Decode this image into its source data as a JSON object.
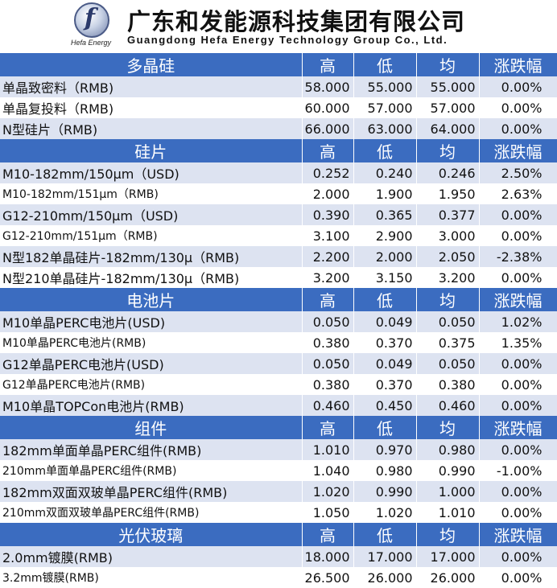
{
  "header": {
    "logo_text": "Hefa Energy",
    "company_cn": "广东和发能源科技集团有限公司",
    "company_en": "Guangdong Hefa Energy Technology Group Co., Ltd."
  },
  "columns": {
    "high": "高",
    "low": "低",
    "avg": "均",
    "change": "涨跌幅"
  },
  "sections": [
    {
      "name": "多晶硅",
      "rows": [
        {
          "name": "单晶致密料（RMB)",
          "high": "58.000",
          "low": "55.000",
          "avg": "55.000",
          "change": "0.00%"
        },
        {
          "name": "单晶复投料（RMB)",
          "high": "60.000",
          "low": "57.000",
          "avg": "57.000",
          "change": "0.00%"
        },
        {
          "name": "N型硅片（RMB)",
          "high": "66.000",
          "low": "63.000",
          "avg": "64.000",
          "change": "0.00%"
        }
      ]
    },
    {
      "name": "硅片",
      "rows": [
        {
          "name": "M10-182mm/150μm（USD)",
          "high": "0.252",
          "low": "0.240",
          "avg": "0.246",
          "change": "2.50%"
        },
        {
          "name": "M10-182mm/151μm（RMB)",
          "high": "2.000",
          "low": "1.900",
          "avg": "1.950",
          "change": "2.63%"
        },
        {
          "name": "G12-210mm/150μm（USD)",
          "high": "0.390",
          "low": "0.365",
          "avg": "0.377",
          "change": "0.00%"
        },
        {
          "name": "G12-210mm/151μm（RMB)",
          "high": "3.100",
          "low": "2.900",
          "avg": "3.000",
          "change": "0.00%"
        },
        {
          "name": "N型182单晶硅片-182mm/130μ（RMB)",
          "high": "2.200",
          "low": "2.000",
          "avg": "2.050",
          "change": "-2.38%"
        },
        {
          "name": "N型210单晶硅片-182mm/130μ（RMB)",
          "high": "3.200",
          "low": "3.150",
          "avg": "3.200",
          "change": "0.00%"
        }
      ]
    },
    {
      "name": "电池片",
      "rows": [
        {
          "name": "M10单晶PERC电池片(USD)",
          "high": "0.050",
          "low": "0.049",
          "avg": "0.050",
          "change": "1.02%"
        },
        {
          "name": "M10单晶PERC电池片(RMB)",
          "high": "0.380",
          "low": "0.370",
          "avg": "0.375",
          "change": "1.35%"
        },
        {
          "name": "G12单晶PERC电池片(USD)",
          "high": "0.050",
          "low": "0.049",
          "avg": "0.050",
          "change": "0.00%"
        },
        {
          "name": "G12单晶PERC电池片(RMB)",
          "high": "0.380",
          "low": "0.370",
          "avg": "0.380",
          "change": "0.00%"
        },
        {
          "name": "M10单晶TOPCon电池片(RMB)",
          "high": "0.460",
          "low": "0.450",
          "avg": "0.460",
          "change": "0.00%"
        }
      ]
    },
    {
      "name": "组件",
      "rows": [
        {
          "name": "182mm单面单晶PERC组件(RMB)",
          "high": "1.010",
          "low": "0.970",
          "avg": "0.980",
          "change": "0.00%"
        },
        {
          "name": "210mm单面单晶PERC组件(RMB)",
          "high": "1.040",
          "low": "0.980",
          "avg": "0.990",
          "change": "-1.00%"
        },
        {
          "name": "182mm双面双玻单晶PERC组件(RMB)",
          "high": "1.020",
          "low": "0.990",
          "avg": "1.000",
          "change": "0.00%"
        },
        {
          "name": "210mm双面双玻单晶PERC组件(RMB)",
          "high": "1.050",
          "low": "1.020",
          "avg": "1.010",
          "change": "0.00%"
        }
      ]
    },
    {
      "name": "光伏玻璃",
      "rows": [
        {
          "name": "2.0mm镀膜(RMB)",
          "high": "18.000",
          "low": "17.000",
          "avg": "17.000",
          "change": "0.00%"
        },
        {
          "name": "3.2mm镀膜(RMB)",
          "high": "26.500",
          "low": "26.000",
          "avg": "26.000",
          "change": "0.00%"
        }
      ]
    }
  ],
  "colors": {
    "section_bg": "#3b6cc0",
    "stripe": "#dde3f1"
  }
}
